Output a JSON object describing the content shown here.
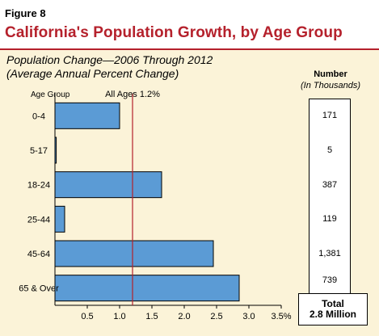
{
  "figure_label": "Figure 8",
  "title": "California's Population Growth, by Age Group",
  "subtitle_line1": "Population Change—2006 Through 2012",
  "subtitle_line2": "(Average Annual Percent Change)",
  "number_header": "Number",
  "number_subheader": "(In Thousands)",
  "total_line1": "Total",
  "total_line2": "2.8 Million",
  "colors": {
    "title": "#b5212c",
    "bar": "#5b9bd5",
    "reference_line": "#b5212c",
    "panel": "#fbf3d8"
  },
  "chart_data": {
    "type": "bar",
    "orientation": "horizontal",
    "category_axis_label": "Age Group",
    "categories": [
      "0-4",
      "5-17",
      "18-24",
      "25-44",
      "45-64",
      "65 & Over"
    ],
    "values": [
      1.0,
      0.02,
      1.65,
      0.15,
      2.45,
      2.85
    ],
    "numbers_thousands": [
      "171",
      "5",
      "387",
      "119",
      "1,381",
      "739"
    ],
    "reference_line": {
      "value": 1.2,
      "label": "All Ages 1.2%"
    },
    "xlim": [
      0,
      3.5
    ],
    "xticks": [
      0.5,
      1.0,
      1.5,
      2.0,
      2.5,
      3.0,
      3.5
    ],
    "xtick_labels": [
      "0.5",
      "1.0",
      "1.5",
      "2.0",
      "2.5",
      "3.0",
      "3.5%"
    ],
    "grid": false,
    "legend": "none"
  }
}
